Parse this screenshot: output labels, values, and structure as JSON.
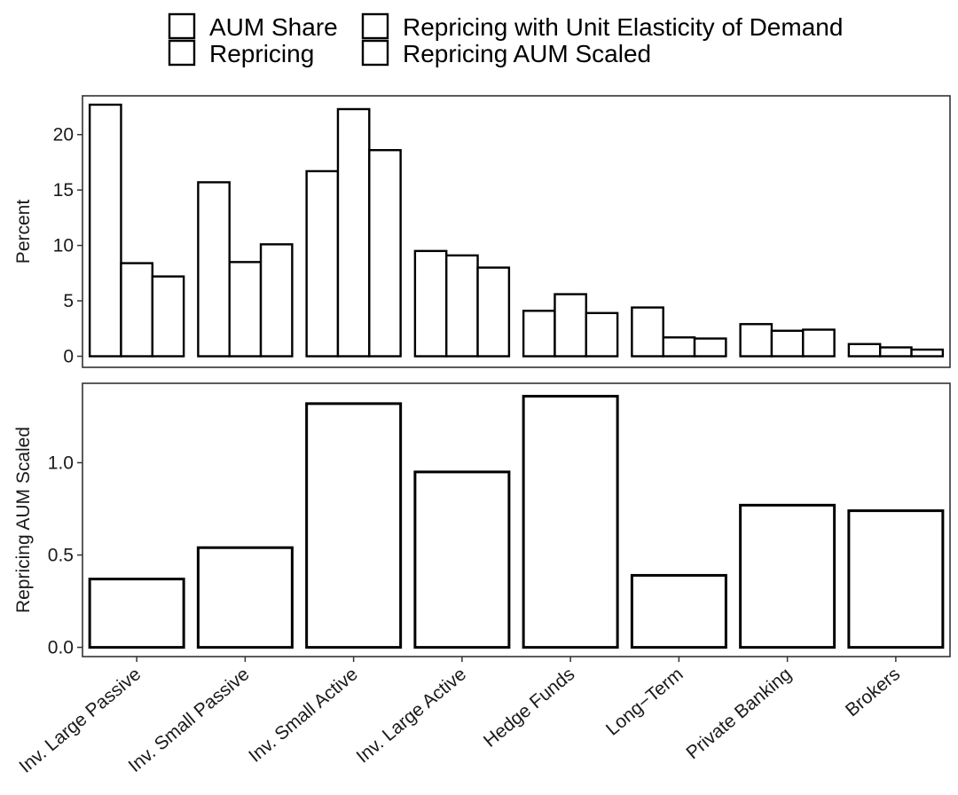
{
  "chart_data": {
    "type": "bar",
    "categories": [
      "Inv. Large Passive",
      "Inv. Small Passive",
      "Inv. Small Active",
      "Inv. Large Active",
      "Hedge Funds",
      "Long−Term",
      "Private Banking",
      "Brokers"
    ],
    "legend": {
      "placement": "top",
      "entries": [
        "AUM Share",
        "Repricing with Unit Elasticity of Demand",
        "Repricing",
        "Repricing AUM Scaled"
      ]
    },
    "panels": [
      {
        "ylabel": "Percent",
        "ylim": [
          -1,
          23.5
        ],
        "yticks": [
          "0",
          "5",
          "10",
          "15",
          "20"
        ],
        "ytick_values": [
          0,
          5,
          10,
          15,
          20
        ],
        "series": [
          {
            "name": "AUM Share",
            "values": [
              22.7,
              15.7,
              16.7,
              9.5,
              4.1,
              4.4,
              2.9,
              1.1
            ]
          },
          {
            "name": "Repricing with Unit Elasticity of Demand",
            "values": [
              8.4,
              8.5,
              22.3,
              9.1,
              5.6,
              1.7,
              2.3,
              0.8
            ]
          },
          {
            "name": "Repricing",
            "values": [
              7.2,
              10.1,
              18.6,
              8.0,
              3.9,
              1.6,
              2.4,
              0.6
            ]
          }
        ]
      },
      {
        "ylabel": "Repricing AUM Scaled",
        "ylim": [
          -0.05,
          1.43
        ],
        "yticks": [
          "0.0",
          "0.5",
          "1.0"
        ],
        "ytick_values": [
          0,
          0.5,
          1.0
        ],
        "series": [
          {
            "name": "Repricing AUM Scaled",
            "values": [
              0.37,
              0.54,
              1.32,
              0.95,
              1.36,
              0.39,
              0.77,
              0.74
            ]
          }
        ]
      }
    ],
    "grid": false
  }
}
